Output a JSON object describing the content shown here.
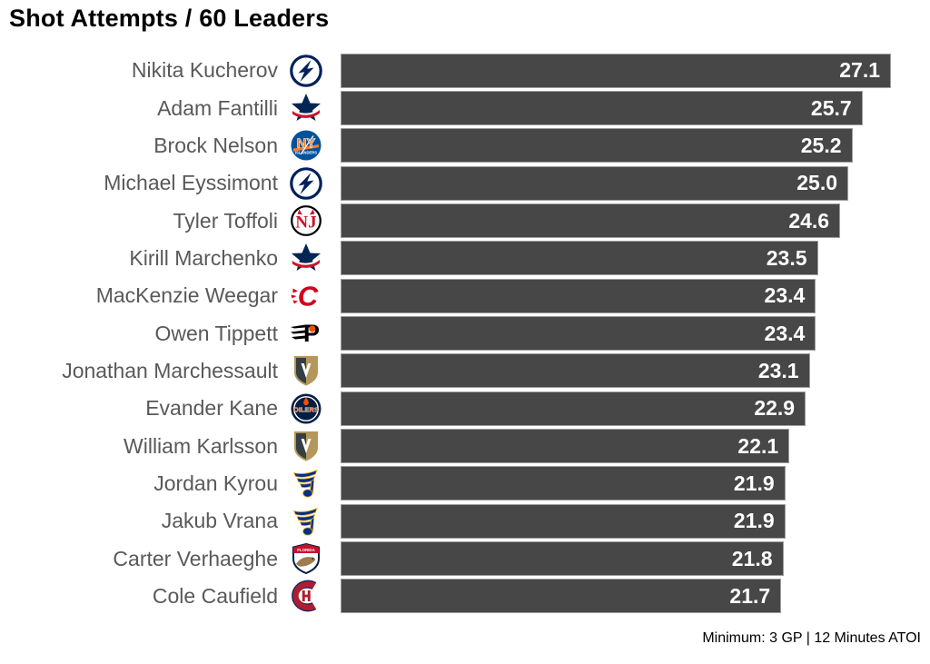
{
  "title": "Shot Attempts / 60 Leaders",
  "footnote": "Minimum: 3 GP | 12 Minutes ATOI",
  "colors": {
    "bar_fill": "#474747",
    "bar_border": "#9e9e9e",
    "value_text": "#ffffff",
    "name_text": "#595959",
    "title_text": "#000000",
    "background": "#ffffff"
  },
  "chart_data": {
    "type": "bar",
    "orientation": "horizontal",
    "title": "Shot Attempts / 60 Leaders",
    "footnote": "Minimum: 3 GP | 12 Minutes ATOI",
    "xlim": [
      0,
      27.1
    ],
    "grid": false,
    "legend": false,
    "players": [
      {
        "name": "Nikita Kucherov",
        "team": "tampa-bay-lightning",
        "value": 27.1
      },
      {
        "name": "Adam Fantilli",
        "team": "columbus-blue-jackets",
        "value": 25.7
      },
      {
        "name": "Brock Nelson",
        "team": "new-york-islanders",
        "value": 25.2
      },
      {
        "name": "Michael Eyssimont",
        "team": "tampa-bay-lightning",
        "value": 25.0
      },
      {
        "name": "Tyler Toffoli",
        "team": "new-jersey-devils",
        "value": 24.6
      },
      {
        "name": "Kirill Marchenko",
        "team": "columbus-blue-jackets",
        "value": 23.5
      },
      {
        "name": "MacKenzie Weegar",
        "team": "calgary-flames",
        "value": 23.4
      },
      {
        "name": "Owen Tippett",
        "team": "philadelphia-flyers",
        "value": 23.4
      },
      {
        "name": "Jonathan Marchessault",
        "team": "vegas-golden-knights",
        "value": 23.1
      },
      {
        "name": "Evander Kane",
        "team": "edmonton-oilers",
        "value": 22.9
      },
      {
        "name": "William Karlsson",
        "team": "vegas-golden-knights",
        "value": 22.1
      },
      {
        "name": "Jordan Kyrou",
        "team": "st-louis-blues",
        "value": 21.9
      },
      {
        "name": "Jakub Vrana",
        "team": "st-louis-blues",
        "value": 21.9
      },
      {
        "name": "Carter Verhaeghe",
        "team": "florida-panthers",
        "value": 21.8
      },
      {
        "name": "Cole Caufield",
        "team": "montreal-canadiens",
        "value": 21.7
      }
    ]
  }
}
